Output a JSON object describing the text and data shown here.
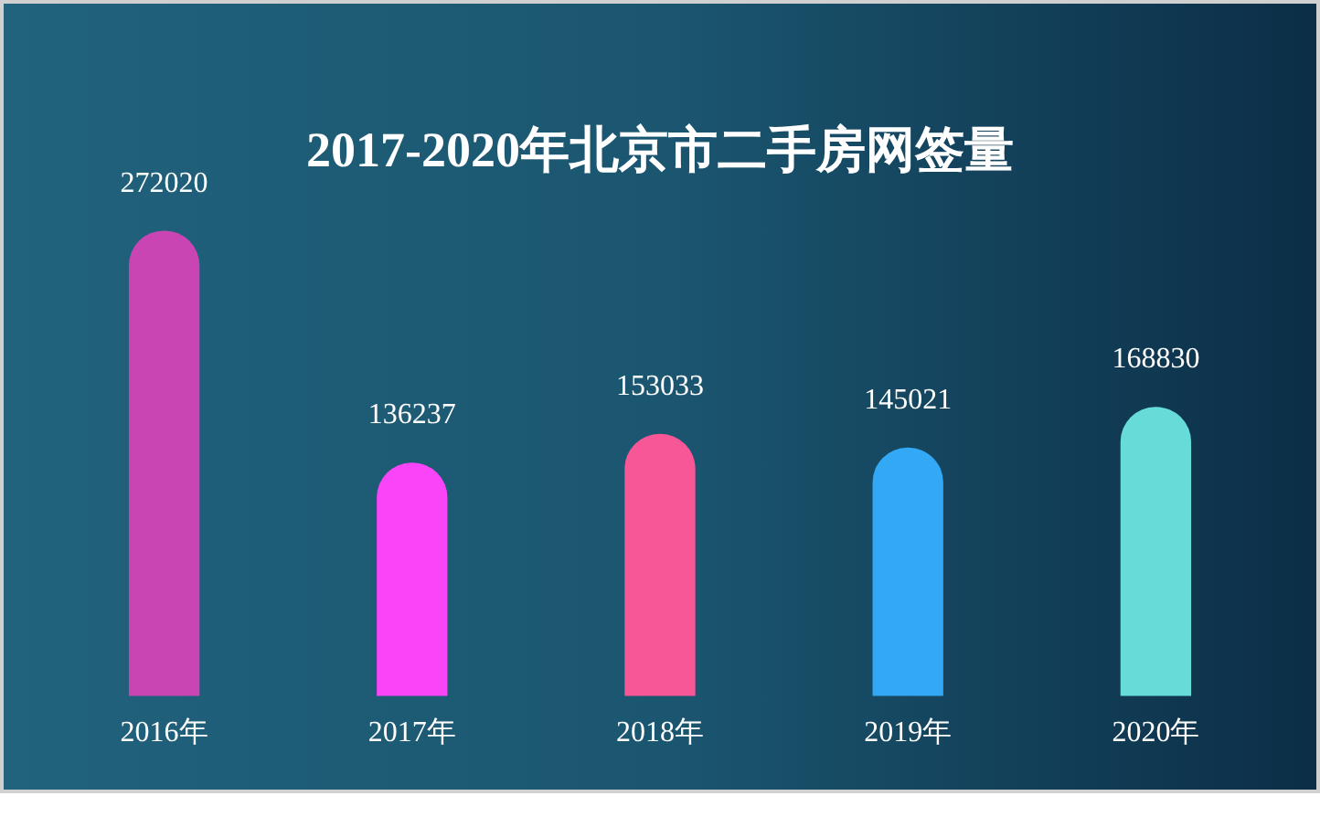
{
  "chart_data": {
    "type": "bar",
    "title": "2017-2020年北京市二手房网签量",
    "categories": [
      "2016年",
      "2017年",
      "2018年",
      "2019年",
      "2020年"
    ],
    "values": [
      272020,
      136237,
      153033,
      145021,
      168830
    ],
    "colors": [
      "#c945b4",
      "#fa44f8",
      "#f75796",
      "#33a9f5",
      "#66dbd8"
    ],
    "data_labels": true,
    "grid": false,
    "legend": false
  }
}
